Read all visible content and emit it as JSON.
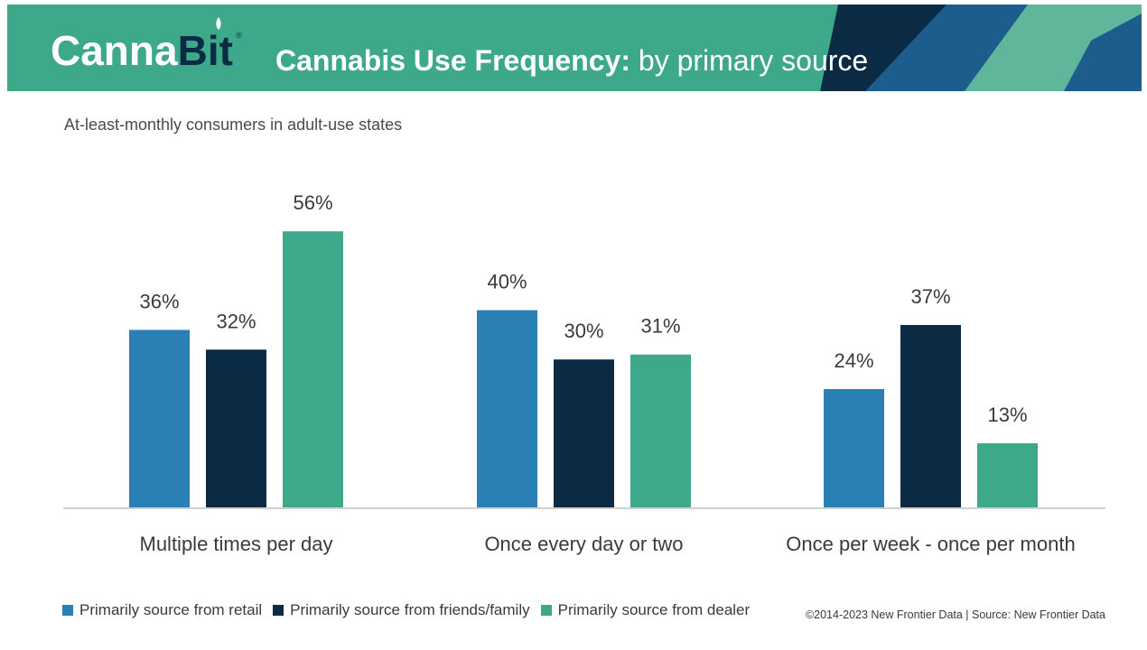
{
  "header": {
    "logo_part1": "Canna",
    "logo_part2": "Bit",
    "logo_reg": "®",
    "title_bold": "Cannabis Use Frequency:",
    "title_rest": " by primary source"
  },
  "colors": {
    "banner": "#3ea98a",
    "retail": "#2a7fb5",
    "friends": "#0b2b45",
    "dealer": "#3ea98a"
  },
  "footer": {
    "source": "©2014-2023  New Frontier Data | Source: New Frontier Data"
  },
  "chart_data": {
    "type": "bar",
    "title": "Cannabis Use Frequency: by primary source",
    "subtitle": "At-least-monthly consumers in adult-use states",
    "categories": [
      "Multiple times per day",
      "Once every day or two",
      "Once per week - once per month"
    ],
    "series": [
      {
        "name": "Primarily source from retail",
        "color": "#2a7fb5",
        "values": [
          36,
          40,
          24
        ],
        "labels": [
          "36%",
          "40%",
          "24%"
        ]
      },
      {
        "name": "Primarily source from friends/family",
        "color": "#0b2b45",
        "values": [
          32,
          30,
          37
        ],
        "labels": [
          "32%",
          "30%",
          "37%"
        ]
      },
      {
        "name": "Primarily source from dealer",
        "color": "#3ea98a",
        "values": [
          56,
          31,
          13
        ],
        "labels": [
          "56%",
          "31%",
          "13%"
        ]
      }
    ],
    "ylim": [
      0,
      60
    ],
    "xlabel": "",
    "ylabel": "",
    "legend_position": "bottom-left",
    "grid": false
  }
}
